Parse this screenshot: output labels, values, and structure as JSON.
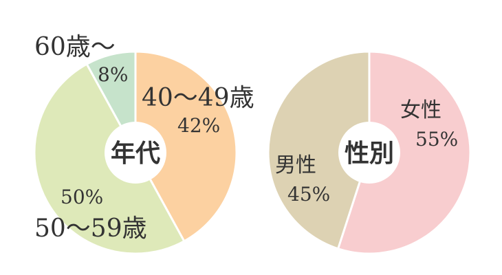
{
  "chart_data": [
    {
      "type": "donut",
      "title": "年代",
      "slices": [
        {
          "label": "40〜49歳",
          "value": 42,
          "value_label": "42%",
          "color": "#fcd1a1"
        },
        {
          "label": "50〜59歳",
          "value": 50,
          "value_label": "50%",
          "color": "#dee9b9"
        },
        {
          "label": "60歳〜",
          "value": 8,
          "value_label": "8%",
          "color": "#c6e3cb"
        }
      ]
    },
    {
      "type": "donut",
      "title": "性別",
      "slices": [
        {
          "label": "女性",
          "value": 55,
          "value_label": "55%",
          "color": "#f8cdcf"
        },
        {
          "label": "男性",
          "value": 45,
          "value_label": "45%",
          "color": "#ddd2b3"
        }
      ]
    }
  ]
}
